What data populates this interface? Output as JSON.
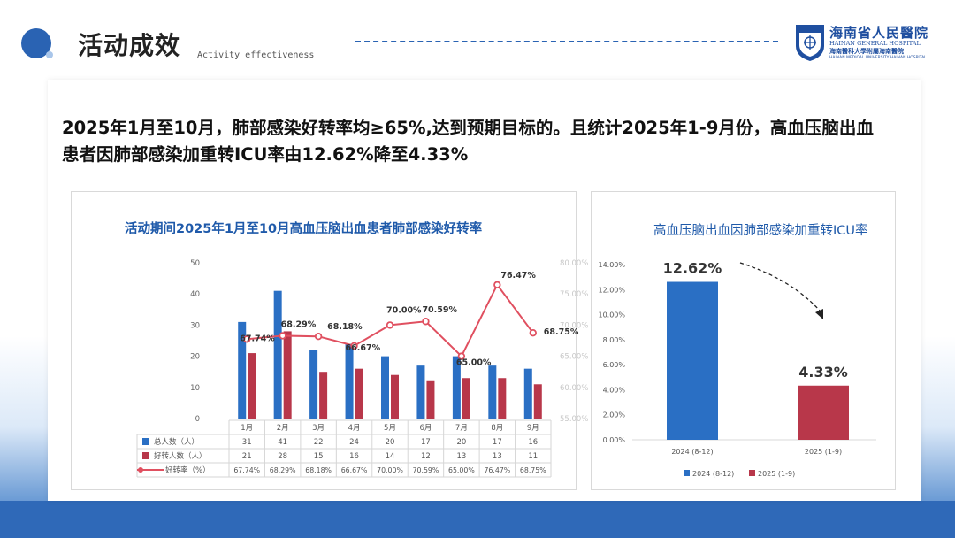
{
  "header": {
    "title": "活动成效",
    "subtitle": "Activity effectiveness",
    "logo": {
      "name": "海南省人民醫院",
      "name_en": "HAINAN GENERAL HOSPITAL",
      "sub": "海南醫科大學附屬海南醫院",
      "sub_en": "HAINAN MEDICAL UNIVERSITY HAINAN HOSPITAL"
    }
  },
  "summary": {
    "line1": "2025年1月至10月，肺部感染好转率均≥65%,达到预期目标的。且统计2025年1-9月份，高血压脑出血",
    "line2": "患者因肺部感染加重转ICU率由12.62%降至4.33%"
  },
  "colors": {
    "blue": "#2a6fc4",
    "red": "#b8374a",
    "title_blue": "#1f5aaa"
  },
  "chart_data": [
    {
      "type": "bar",
      "title": "活动期间2025年1月至10月高血压脑出血患者肺部感染好转率",
      "categories": [
        "1月",
        "2月",
        "3月",
        "4月",
        "5月",
        "6月",
        "7月",
        "8月",
        "9月"
      ],
      "series": [
        {
          "name": "总人数（人）",
          "type": "bar",
          "axis": "left",
          "values": [
            31,
            41,
            22,
            24,
            20,
            17,
            20,
            17,
            16
          ]
        },
        {
          "name": "好转人数（人）",
          "type": "bar",
          "axis": "left",
          "values": [
            21,
            28,
            15,
            16,
            14,
            12,
            13,
            13,
            11
          ]
        },
        {
          "name": "好转率（%）",
          "type": "line",
          "axis": "right",
          "values": [
            67.74,
            68.29,
            68.18,
            66.67,
            70.0,
            70.59,
            65.0,
            76.47,
            68.75
          ],
          "labels": [
            "67.74%",
            "68.29%",
            "68.18%",
            "66.67%",
            "70.00%",
            "70.59%",
            "65.00%",
            "76.47%",
            "68.75%"
          ],
          "table_labels": [
            "67.74%",
            "68.29%",
            "68.18%",
            "66.67%",
            "70.00%",
            "70.59%",
            "65.00%",
            "76.47%",
            "68.75%"
          ]
        }
      ],
      "ylim_left": [
        0,
        50
      ],
      "yticks_left": [
        "0",
        "10",
        "20",
        "30",
        "40",
        "50"
      ],
      "ylim_right": [
        55,
        80
      ],
      "yticks_right": [
        "55.00%",
        "60.00%",
        "65.00%",
        "70.00%",
        "75.00%",
        "80.00%"
      ],
      "legend": "data-table",
      "grid": false
    },
    {
      "type": "bar",
      "title": "高血压脑出血因肺部感染加重转ICU率",
      "categories": [
        "2024 (8-12)",
        "2025 (1-9)"
      ],
      "values": [
        12.62,
        4.33
      ],
      "labels": [
        "12.62%",
        "4.33%"
      ],
      "ylim": [
        0,
        14
      ],
      "yticks": [
        "0.00%",
        "2.00%",
        "4.00%",
        "6.00%",
        "8.00%",
        "10.00%",
        "12.00%",
        "14.00%"
      ],
      "legend": [
        "2024 (8-12)",
        "2025 (1-9)"
      ],
      "legend_position": "bottom",
      "grid": false
    }
  ]
}
